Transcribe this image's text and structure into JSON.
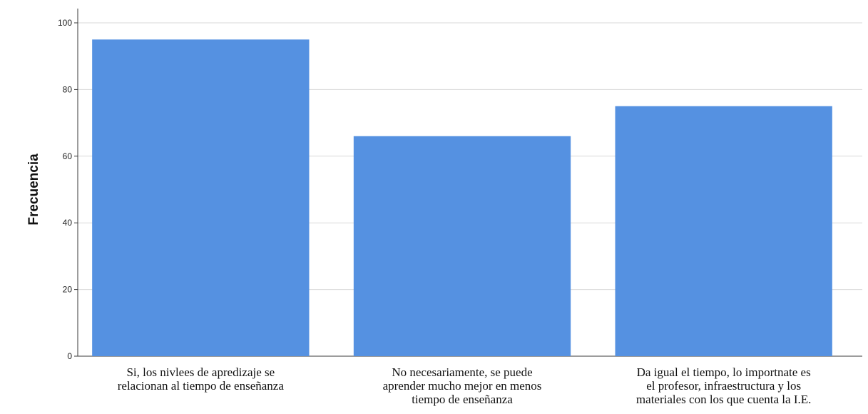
{
  "chart_data": {
    "type": "bar",
    "title": "",
    "xlabel": "",
    "ylabel": "Frecuencia",
    "ylim": [
      0,
      100
    ],
    "yticks": [
      "0",
      "20",
      "40",
      "60",
      "80",
      "100"
    ],
    "grid": true,
    "legend": "none",
    "bar_color": "#5591E1",
    "categories": [
      [
        "Si, los nivlees de apredizaje se",
        "relacionan al tiempo de enseñanza"
      ],
      [
        "No necesariamente, se puede",
        "aprender mucho mejor en menos",
        "tiempo de enseñanza"
      ],
      [
        "Da igual el tiempo, lo importnate es",
        "el profesor, infraestructura y los",
        "materiales con los que cuenta la I.E."
      ]
    ],
    "values": [
      95,
      66,
      75
    ]
  }
}
